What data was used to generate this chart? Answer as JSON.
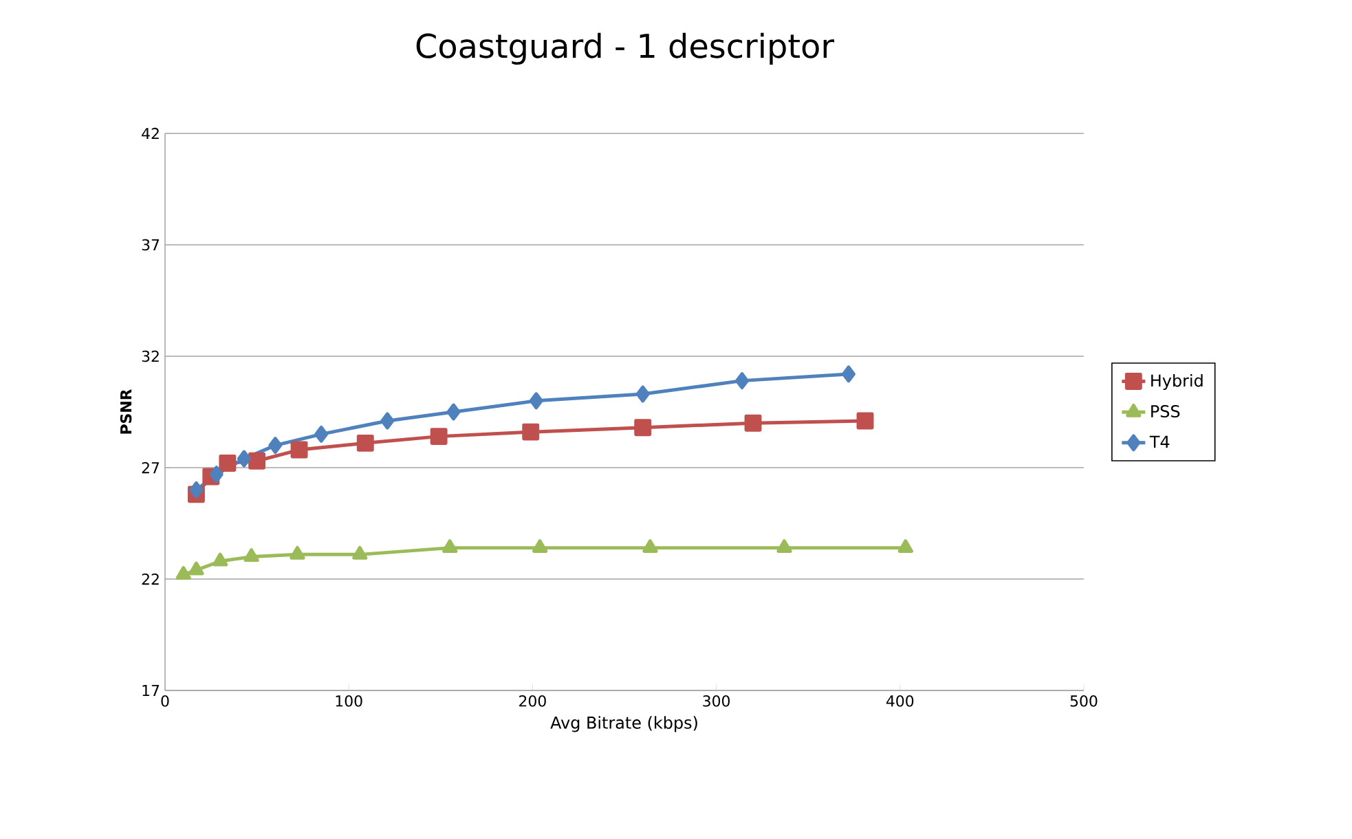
{
  "chart_data": {
    "type": "line",
    "title": "Coastguard - 1 descriptor",
    "xlabel": "Avg Bitrate (kbps)",
    "ylabel": "PSNR",
    "xlim": [
      0,
      500
    ],
    "xticks": [
      0,
      100,
      200,
      300,
      400,
      500
    ],
    "ylim": [
      17,
      42
    ],
    "yticks": [
      17,
      22,
      27,
      32,
      37,
      42
    ],
    "grid": "y",
    "legend": "right",
    "series": [
      {
        "name": "Hybrid",
        "color": "#c0504d",
        "marker": "square",
        "x": [
          17,
          25,
          34,
          50,
          73,
          109,
          149,
          199,
          260,
          320,
          381
        ],
        "values": [
          25.8,
          26.6,
          27.2,
          27.3,
          27.8,
          28.1,
          28.4,
          28.6,
          28.8,
          29.0,
          29.1
        ]
      },
      {
        "name": "PSS",
        "color": "#9bbb59",
        "marker": "triangle",
        "x": [
          10,
          17,
          30,
          47,
          72,
          106,
          155,
          204,
          264,
          337,
          403
        ],
        "values": [
          22.2,
          22.4,
          22.8,
          23.0,
          23.1,
          23.1,
          23.4,
          23.4,
          23.4,
          23.4,
          23.4
        ]
      },
      {
        "name": "T4",
        "color": "#4f81bd",
        "marker": "diamond",
        "x": [
          17,
          28,
          43,
          60,
          85,
          121,
          157,
          202,
          260,
          314,
          372
        ],
        "values": [
          26.0,
          26.7,
          27.4,
          28.0,
          28.5,
          29.1,
          29.5,
          30.0,
          30.3,
          30.9,
          31.2
        ]
      }
    ]
  }
}
